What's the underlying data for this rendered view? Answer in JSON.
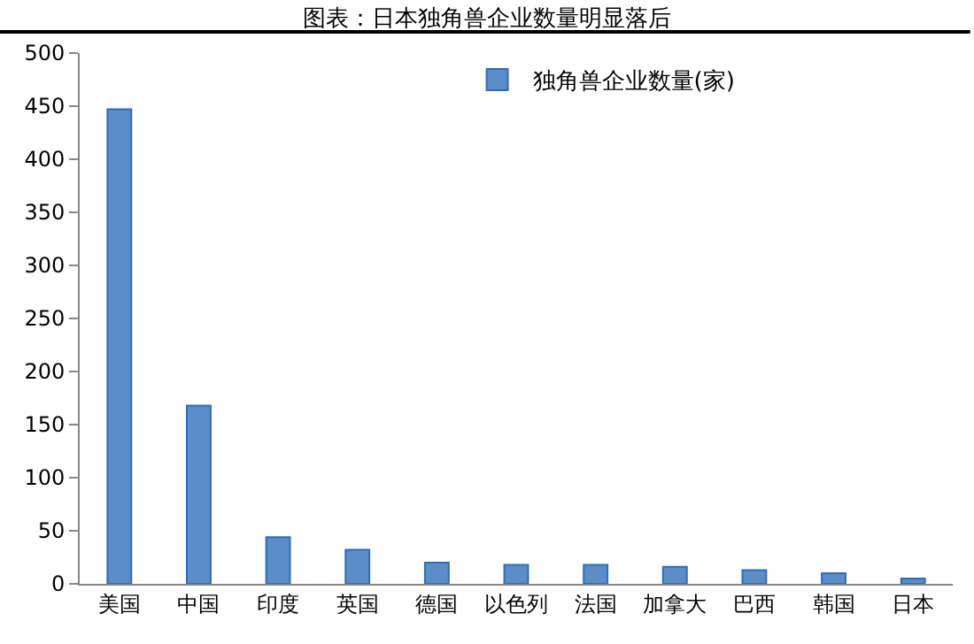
{
  "chart_data": {
    "type": "bar",
    "title": "图表：日本独角兽企业数量明显落后",
    "categories": [
      "美国",
      "中国",
      "印度",
      "英国",
      "德国",
      "以色列",
      "法国",
      "加拿大",
      "巴西",
      "韩国",
      "日本"
    ],
    "series": [
      {
        "name": "独角兽企业数量(家)",
        "color": "#5b8ec8",
        "values": [
          447,
          168,
          44,
          32,
          20,
          18,
          18,
          16,
          13,
          10,
          5
        ]
      }
    ],
    "ylim": [
      0,
      500
    ],
    "yticks": [
      0,
      50,
      100,
      150,
      200,
      250,
      300,
      350,
      400,
      450,
      500
    ],
    "legend": "top"
  }
}
